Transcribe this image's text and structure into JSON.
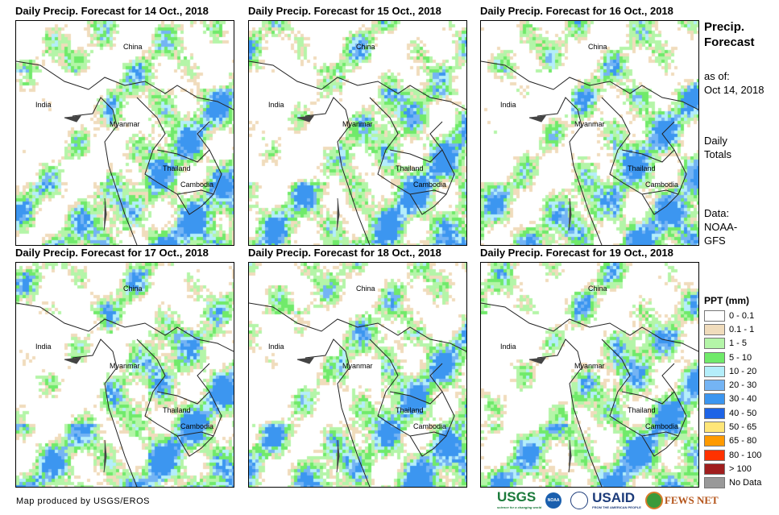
{
  "panels": [
    {
      "title": "Daily Precip. Forecast for 14 Oct., 2018",
      "wet": 0.45,
      "seed": 1
    },
    {
      "title": "Daily Precip. Forecast for 15 Oct., 2018",
      "wet": 0.5,
      "seed": 2
    },
    {
      "title": "Daily Precip. Forecast for 16 Oct., 2018",
      "wet": 0.4,
      "seed": 3
    },
    {
      "title": "Daily Precip. Forecast for 17 Oct., 2018",
      "wet": 0.5,
      "seed": 4
    },
    {
      "title": "Daily Precip. Forecast for 18 Oct., 2018",
      "wet": 0.45,
      "seed": 5
    },
    {
      "title": "Daily Precip. Forecast for 19 Oct., 2018",
      "wet": 0.5,
      "seed": 6
    }
  ],
  "places": {
    "china": "China",
    "india": "India",
    "myanmar": "Myanmar",
    "thailand": "Thailand",
    "cambodia": "Cambodia"
  },
  "sidebar": {
    "title1": "Precip.",
    "title2": "Forecast",
    "asof": "as of:",
    "date": "Oct 14, 2018",
    "daily": "Daily",
    "totals": "Totals",
    "data": "Data:",
    "source1": "NOAA-",
    "source2": "GFS"
  },
  "legend": {
    "title": "PPT (mm)",
    "items": [
      {
        "label": "0 - 0.1",
        "color": "#ffffff"
      },
      {
        "label": "0.1 - 1",
        "color": "#f0dcbc"
      },
      {
        "label": "1 - 5",
        "color": "#b4f5a8"
      },
      {
        "label": "5 - 10",
        "color": "#70ea6a"
      },
      {
        "label": "10 - 20",
        "color": "#b4eefa"
      },
      {
        "label": "20 - 30",
        "color": "#74b4f4"
      },
      {
        "label": "30 - 40",
        "color": "#3c96f0"
      },
      {
        "label": "40 - 50",
        "color": "#1e64e6"
      },
      {
        "label": "50 - 65",
        "color": "#ffe678"
      },
      {
        "label": "65 - 80",
        "color": "#ff9a00"
      },
      {
        "label": "80 - 100",
        "color": "#ff3200"
      },
      {
        "label": "> 100",
        "color": "#a01e1e"
      },
      {
        "label": "No Data",
        "color": "#999999"
      }
    ]
  },
  "footer": "Map produced by USGS/EROS",
  "logos": {
    "usgs": "USGS",
    "usgs_tag": "science for a changing world",
    "noaa": "NOAA",
    "usaid": "USAID",
    "usaid_tag": "FROM THE AMERICAN PEOPLE",
    "fews": "FEWS NET"
  }
}
